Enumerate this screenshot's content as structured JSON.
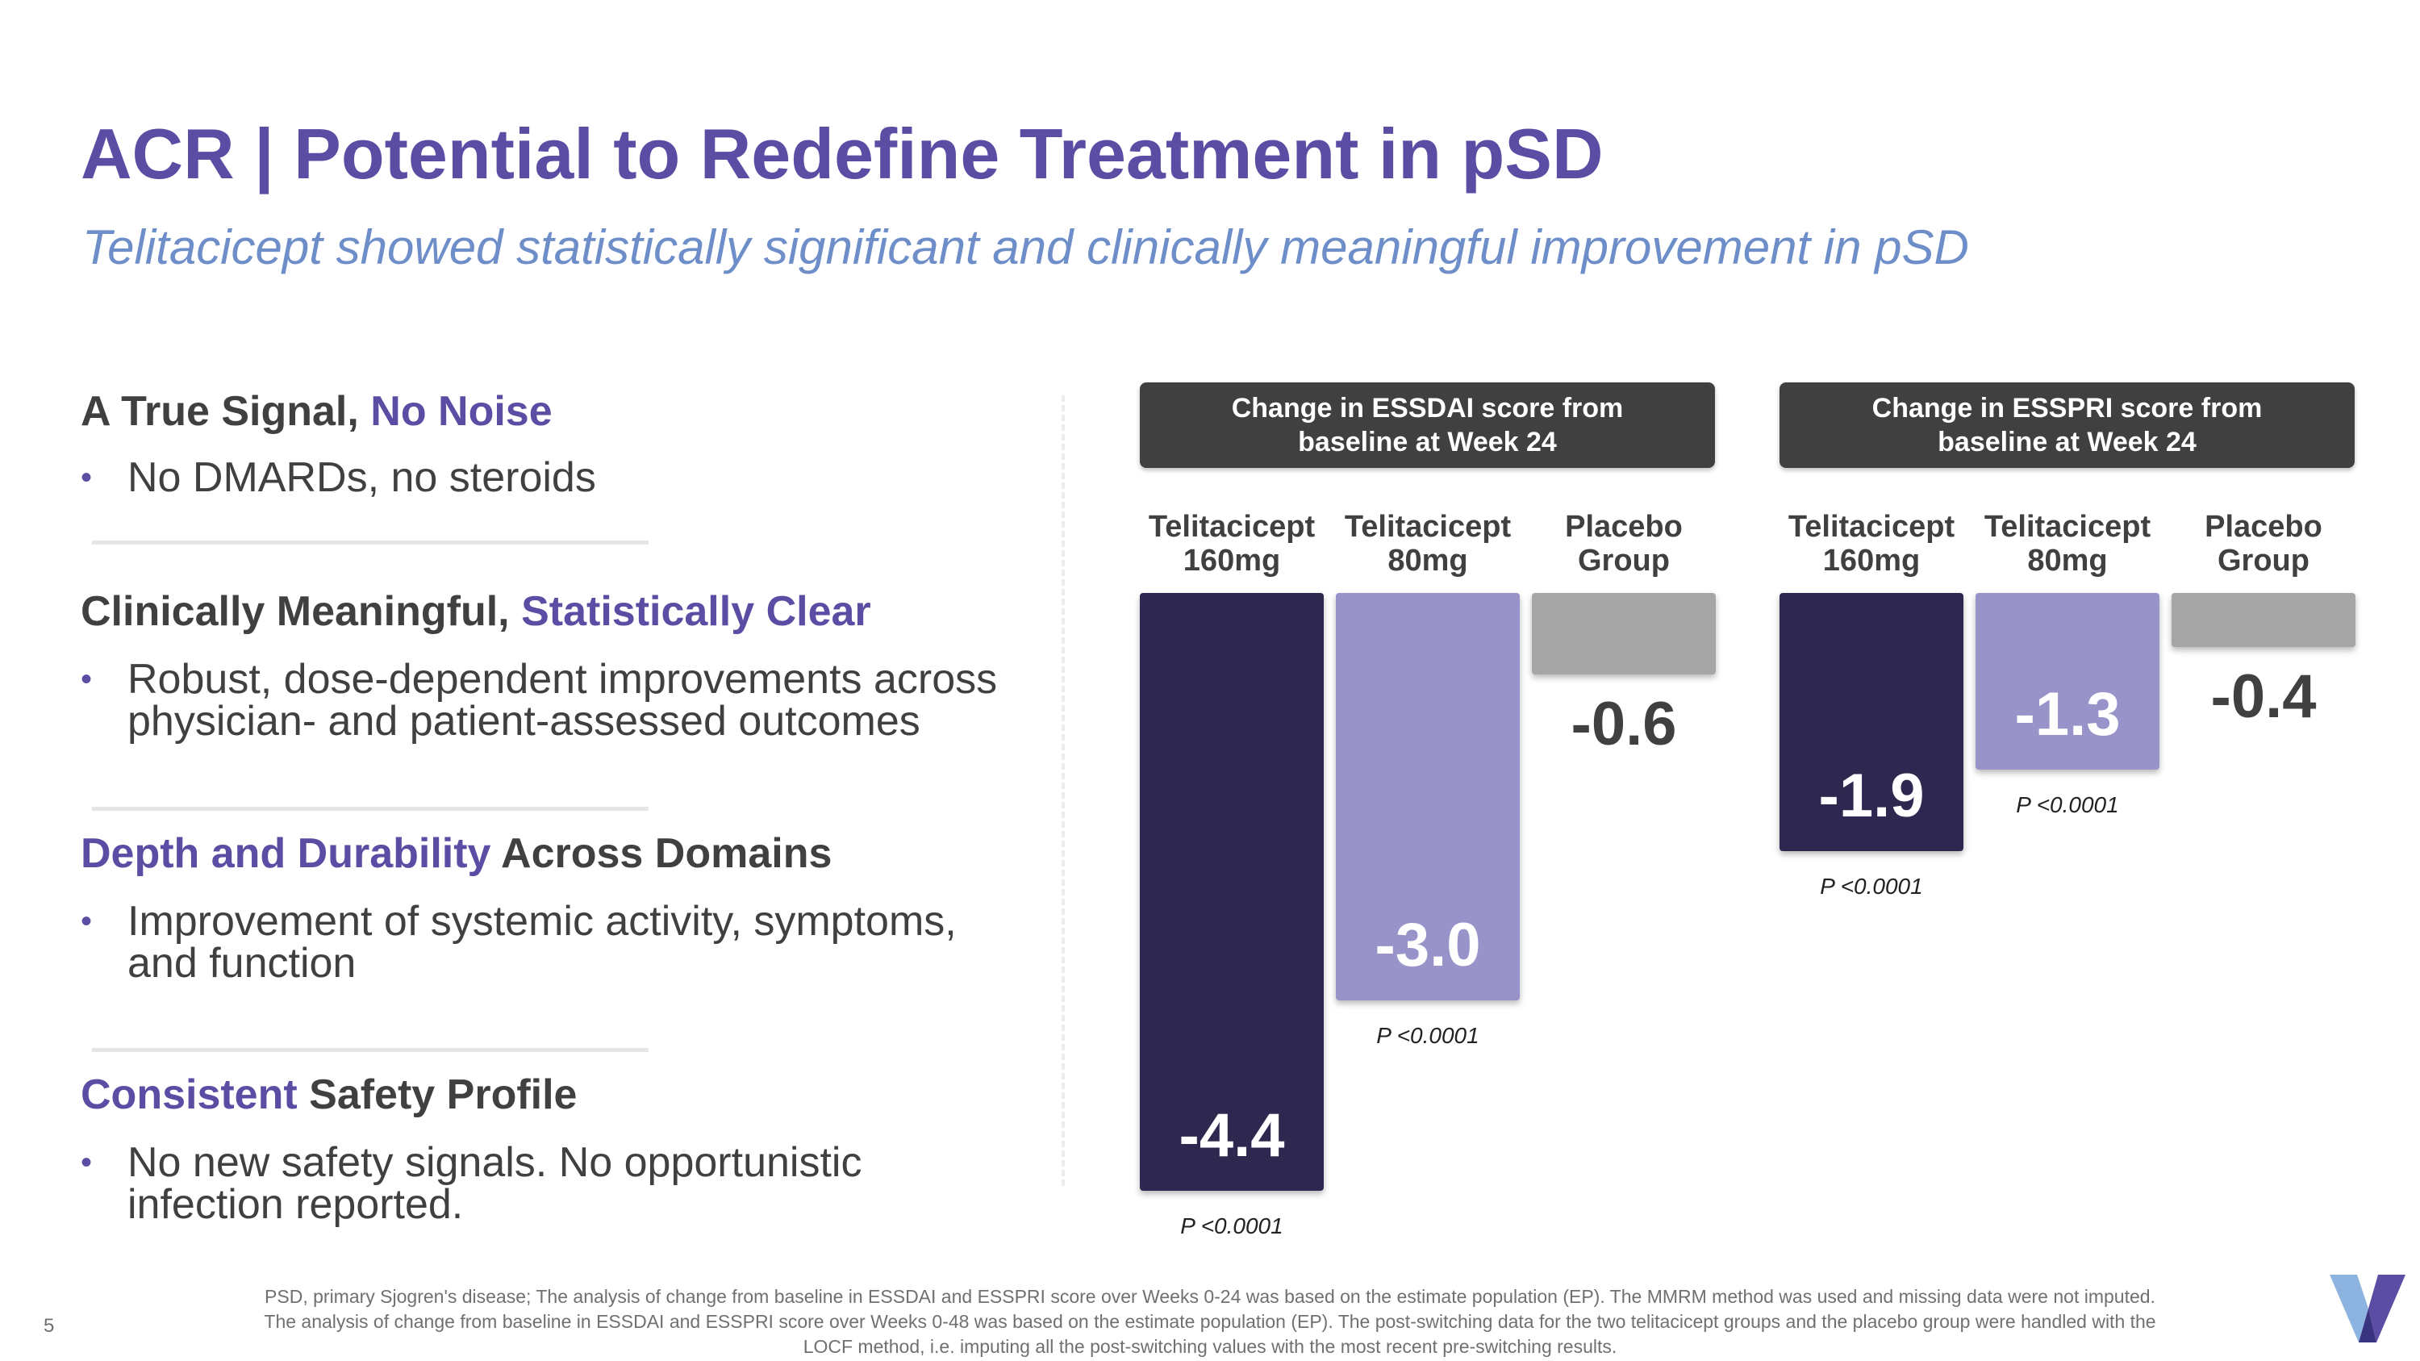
{
  "header": {
    "title": "ACR | Potential to Redefine Treatment in pSD",
    "subtitle": "Telitacicept showed statistically significant and clinically meaningful improvement in pSD"
  },
  "sections": [
    {
      "head_a": "A True Signal,",
      "head_b": "No Noise",
      "bullet_lines": [
        "No DMARDs, no steroids"
      ]
    },
    {
      "head_a": "Clinically Meaningful,",
      "head_b": "Statistically Clear",
      "bullet_lines": [
        "Robust, dose-dependent improvements across",
        "physician- and patient-assessed outcomes"
      ]
    },
    {
      "head_a": "Depth and Durability",
      "head_b": "Across Domains",
      "bullet_lines": [
        "Improvement of systemic activity, symptoms,",
        "and function"
      ]
    },
    {
      "head_a": "Consistent",
      "head_b": "Safety Profile",
      "bullet_lines": [
        "No new safety signals. No opportunistic",
        "infection reported."
      ]
    }
  ],
  "bullet_symbol": "•",
  "colors": {
    "title": "#5a4da3",
    "subtitle": "#6e8ec9",
    "dose160": "#2e2850",
    "dose80": "#9893c9",
    "placebo": "#a6a6a6",
    "header_bg": "#404040"
  },
  "chart_data": [
    {
      "type": "bar",
      "title_lines": [
        "Change in ESSDAI score from",
        "baseline at Week 24"
      ],
      "categories": [
        [
          "Telitacicept",
          "160mg"
        ],
        [
          "Telitacicept",
          "80mg"
        ],
        [
          "Placebo",
          "Group"
        ]
      ],
      "values": [
        -4.4,
        -3.0,
        -0.6
      ],
      "value_labels": [
        "-4.4",
        "-3.0",
        "-0.6"
      ],
      "p_values": [
        "P <0.0001",
        "P <0.0001",
        ""
      ],
      "ylim": [
        -4.4,
        0
      ]
    },
    {
      "type": "bar",
      "title_lines": [
        "Change in ESSPRI score from",
        "baseline at Week 24"
      ],
      "categories": [
        [
          "Telitacicept",
          "160mg"
        ],
        [
          "Telitacicept",
          "80mg"
        ],
        [
          "Placebo",
          "Group"
        ]
      ],
      "values": [
        -1.9,
        -1.3,
        -0.4
      ],
      "value_labels": [
        "-1.9",
        "-1.3",
        "-0.4"
      ],
      "p_values": [
        "P <0.0001",
        "P <0.0001",
        ""
      ],
      "ylim": [
        -4.4,
        0
      ]
    }
  ],
  "footnote": {
    "line1": "PSD, primary Sjogren's disease; The analysis of change from baseline in ESSDAI and  ESSPRI score over Weeks 0-24 was based on the estimate population (EP). The MMRM method was used and missing data were not imputed.",
    "line2": "The analysis of change from baseline in ESSDAI and ESSPRI score over Weeks 0-48 was based on the estimate population (EP). The post-switching data for the two telitacicept groups and the placebo group were handled with the",
    "line3": "LOCF method, i.e. imputing all the post-switching values with the most recent pre-switching results."
  },
  "page_number": "5",
  "logo": {
    "icon": "v-logo-icon"
  }
}
